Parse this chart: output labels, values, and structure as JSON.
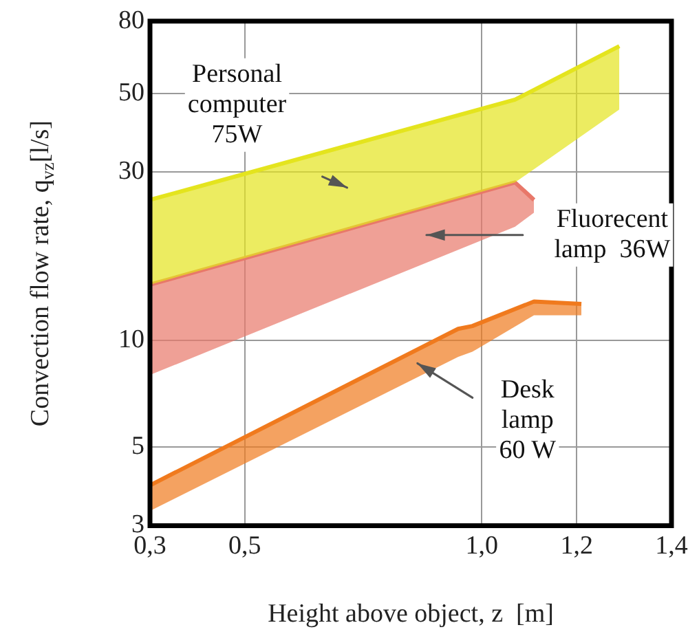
{
  "chart_data": {
    "type": "line",
    "xlabel": "Height above object, z  [m]",
    "ylabel": "Convection flow rate, q$_{vz}$[l/s]",
    "xlim": [
      0.3,
      1.4
    ],
    "xticks": [
      {
        "value": 0.3,
        "label": "0,3"
      },
      {
        "value": 0.5,
        "label": "0,5"
      },
      {
        "value": 1.0,
        "label": "1,0"
      },
      {
        "value": 1.2,
        "label": "1,2"
      },
      {
        "value": 1.4,
        "label": "1,4"
      }
    ],
    "ylim": [
      3,
      80
    ],
    "yticks": [
      3,
      5,
      10,
      30,
      50,
      80
    ],
    "log": true,
    "grid": true,
    "legend": false,
    "series": [
      {
        "name": "Personal\ncomputer\n75W",
        "color": "#e4e41e",
        "x": [
          0.3,
          1.07,
          1.29
        ],
        "values": [
          25,
          48,
          68
        ],
        "upper": [
          25,
          48,
          68
        ],
        "lower": [
          14.4,
          28,
          45
        ]
      },
      {
        "name": "Fluorecent\nlamp  36W",
        "color": "#e8786a",
        "x": [
          0.3,
          1.07,
          1.11
        ],
        "values": [
          14.4,
          28,
          25
        ],
        "upper": [
          14.4,
          28,
          25
        ],
        "lower": [
          8,
          21,
          23
        ]
      },
      {
        "name": "Desk\nlamp\n60 W",
        "color": "#f07a1e",
        "x": [
          0.3,
          0.95,
          0.98,
          1.11,
          1.21
        ],
        "values": [
          3.9,
          10.8,
          11,
          12.9,
          12.7
        ],
        "upper": [
          3.9,
          10.8,
          11,
          12.9,
          12.7
        ],
        "lower": [
          3.3,
          9,
          9.3,
          11.8,
          11.8
        ]
      }
    ]
  }
}
